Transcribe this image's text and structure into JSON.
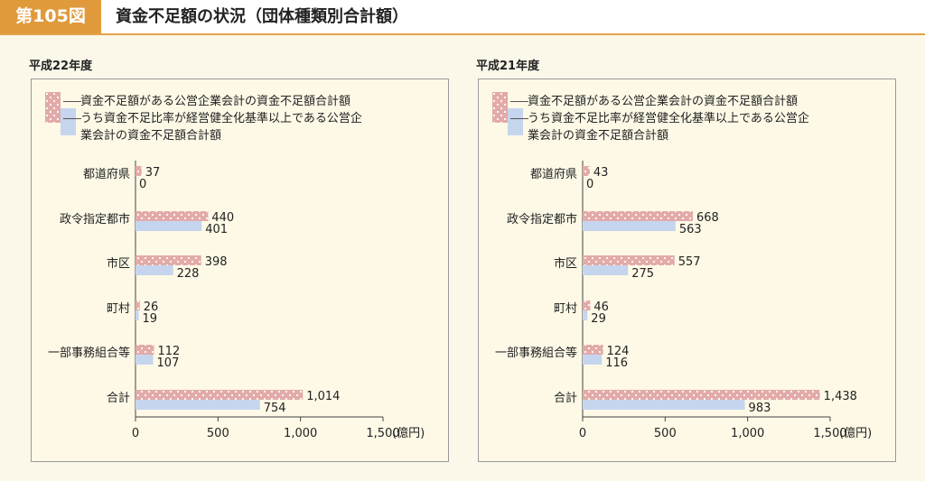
{
  "header": {
    "badge": "第105図",
    "title": "資金不足額の状況（団体種類別合計額）"
  },
  "legend": {
    "series1": "資金不足額がある公営企業会計の資金不足額合計額",
    "series2_line1": "うち資金不足比率が経営健全化基準以上である公営企",
    "series2_line2": "業会計の資金不足額合計額"
  },
  "colors": {
    "pink": "#e2aaa8",
    "blue": "#c5d5ee",
    "accent": "#e09a3b"
  },
  "chart_data": [
    {
      "type": "bar",
      "orientation": "horizontal",
      "title": "平成22年度",
      "categories": [
        "都道府県",
        "政令指定都市",
        "市区",
        "町村",
        "一部事務組合等",
        "合計"
      ],
      "series": [
        {
          "name": "資金不足額がある公営企業会計の資金不足額合計額",
          "values": [
            37,
            440,
            398,
            26,
            112,
            1014
          ],
          "labels": [
            "37",
            "440",
            "398",
            "26",
            "112",
            "1,014"
          ]
        },
        {
          "name": "うち資金不足比率が経営健全化基準以上である公営企業会計の資金不足額合計額",
          "values": [
            0,
            401,
            228,
            19,
            107,
            754
          ],
          "labels": [
            "0",
            "401",
            "228",
            "19",
            "107",
            "754"
          ]
        }
      ],
      "xlim": [
        0,
        1500
      ],
      "xticks": [
        "0",
        "500",
        "1,000",
        "1,500"
      ],
      "unit": "(億円)"
    },
    {
      "type": "bar",
      "orientation": "horizontal",
      "title": "平成21年度",
      "categories": [
        "都道府県",
        "政令指定都市",
        "市区",
        "町村",
        "一部事務組合等",
        "合計"
      ],
      "series": [
        {
          "name": "資金不足額がある公営企業会計の資金不足額合計額",
          "values": [
            43,
            668,
            557,
            46,
            124,
            1438
          ],
          "labels": [
            "43",
            "668",
            "557",
            "46",
            "124",
            "1,438"
          ]
        },
        {
          "name": "うち資金不足比率が経営健全化基準以上である公営企業会計の資金不足額合計額",
          "values": [
            0,
            563,
            275,
            29,
            116,
            983
          ],
          "labels": [
            "0",
            "563",
            "275",
            "29",
            "116",
            "983"
          ]
        }
      ],
      "xlim": [
        0,
        1500
      ],
      "xticks": [
        "0",
        "500",
        "1,000",
        "1,500"
      ],
      "unit": "(億円)"
    }
  ]
}
